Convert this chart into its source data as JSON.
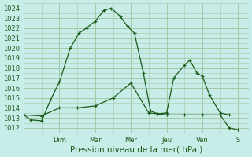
{
  "xlabel": "Pression niveau de la mer( hPa )",
  "bg_color": "#c8ece8",
  "grid_color": "#a8c8a8",
  "line_color": "#1a5c1a",
  "ylim": [
    1011.5,
    1024.5
  ],
  "yticks": [
    1012,
    1013,
    1014,
    1015,
    1016,
    1017,
    1018,
    1019,
    1020,
    1021,
    1022,
    1023,
    1024
  ],
  "day_labels": [
    "Dim",
    "Mar",
    "Mer",
    "Jeu",
    "Ven",
    "S"
  ],
  "day_positions": [
    1.0,
    2.0,
    3.0,
    4.0,
    5.0,
    6.0
  ],
  "xlim": [
    0,
    6.3
  ],
  "line1_x": [
    0.0,
    0.2,
    0.5,
    0.75,
    1.0,
    1.3,
    1.55,
    1.75,
    2.0,
    2.25,
    2.45,
    2.7,
    2.9,
    3.1,
    3.35,
    3.55,
    3.75,
    4.0,
    4.2,
    4.5,
    4.65,
    4.85,
    5.0,
    5.2,
    5.5,
    5.75
  ],
  "line1_y": [
    1013.3,
    1012.8,
    1012.7,
    1014.8,
    1016.6,
    1020.0,
    1021.5,
    1022.0,
    1022.7,
    1023.8,
    1024.0,
    1023.2,
    1022.2,
    1021.5,
    1017.5,
    1013.7,
    1013.4,
    1013.5,
    1017.0,
    1018.3,
    1018.8,
    1017.5,
    1017.2,
    1015.3,
    1013.5,
    1013.3
  ],
  "line2_x": [
    0.0,
    0.5,
    1.0,
    1.5,
    2.0,
    2.5,
    3.0,
    3.5,
    4.0,
    4.5,
    5.0,
    5.5,
    5.75,
    6.0
  ],
  "line2_y": [
    1013.3,
    1013.2,
    1014.0,
    1014.0,
    1014.2,
    1015.0,
    1016.5,
    1013.5,
    1013.3,
    1013.3,
    1013.3,
    1013.3,
    1012.0,
    1011.8
  ]
}
